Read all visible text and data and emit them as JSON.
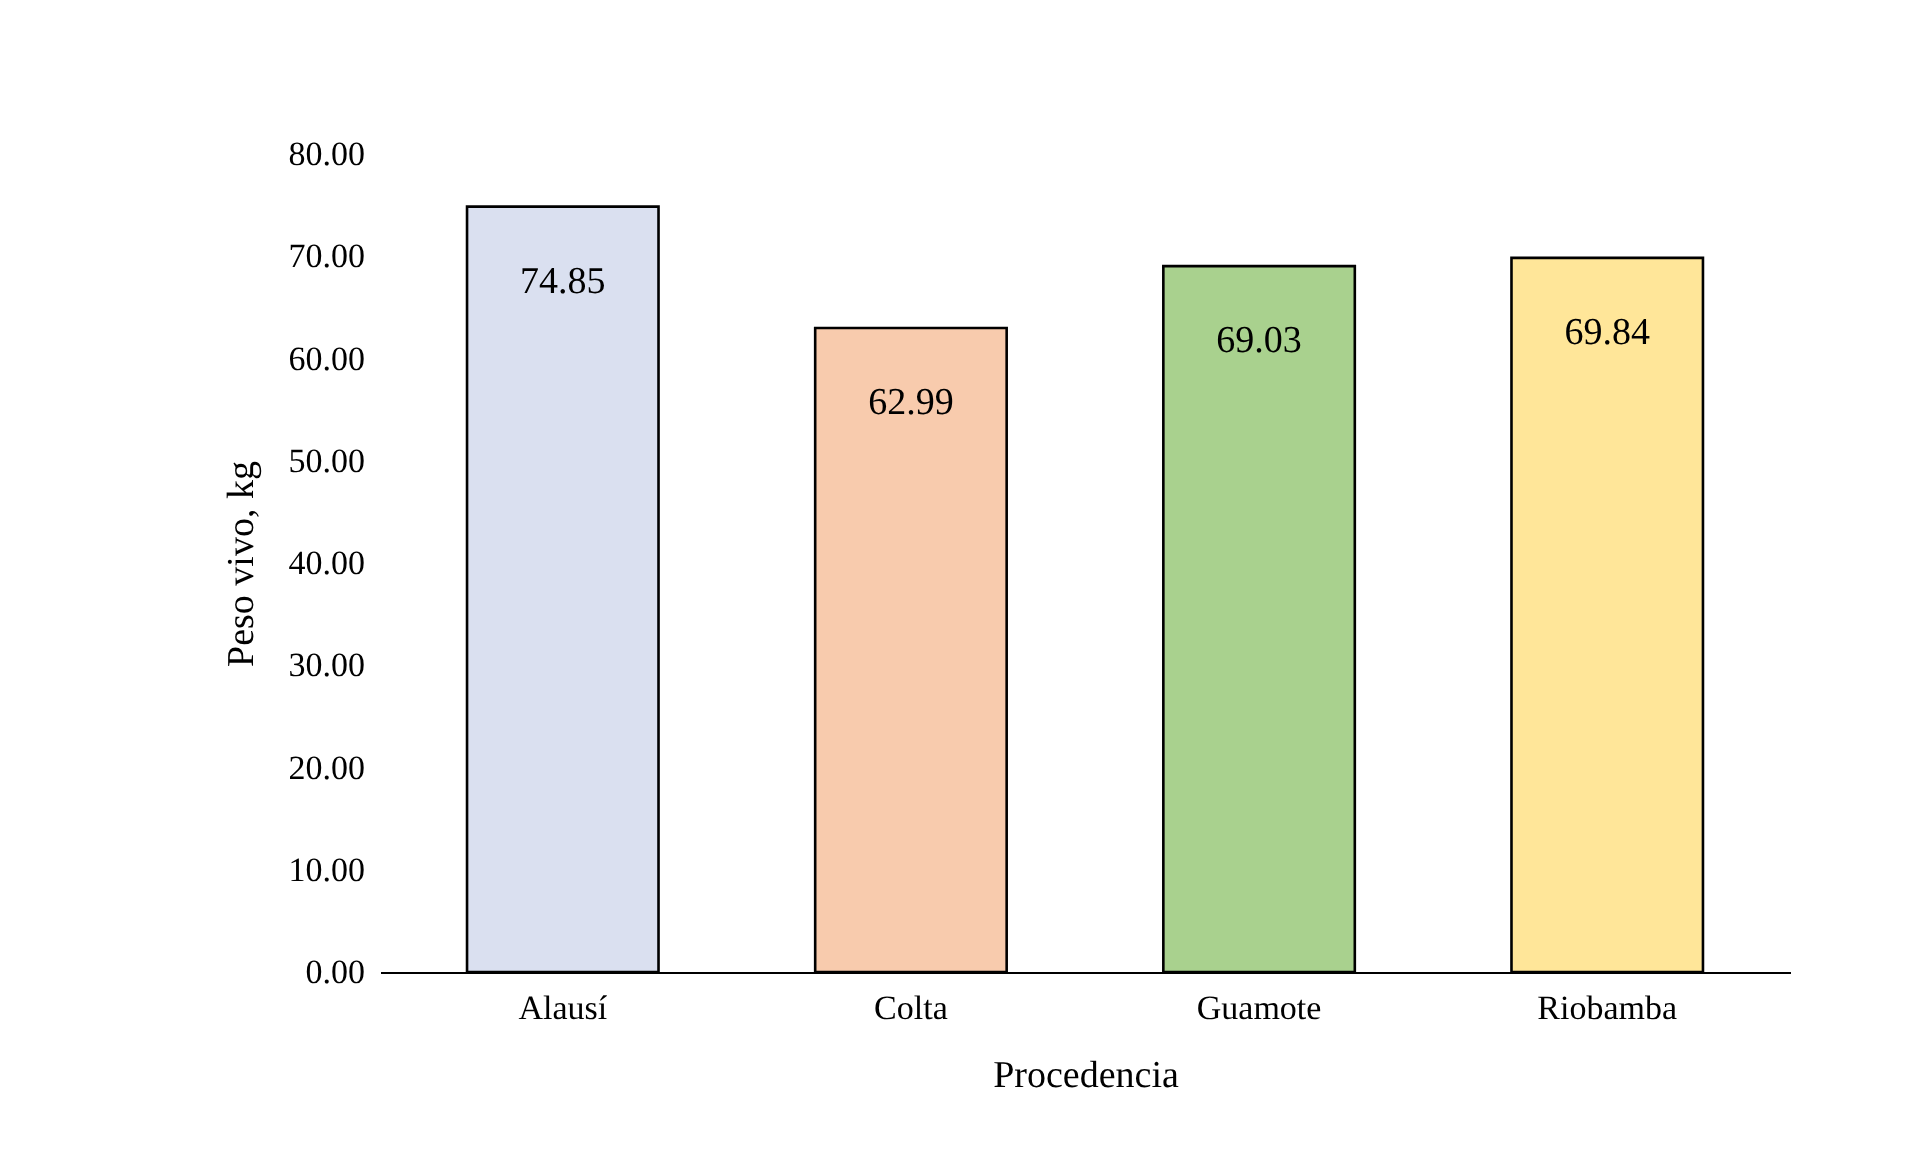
{
  "chart_data": {
    "type": "bar",
    "xlabel": "Procedencia",
    "ylabel": "Peso vivo, kg",
    "categories": [
      "Alausí",
      "Colta",
      "Guamote",
      "Riobamba"
    ],
    "values": [
      74.85,
      62.99,
      69.03,
      69.84
    ],
    "colors": [
      "#dae0f0",
      "#f8cbad",
      "#a9d18e",
      "#ffe699"
    ],
    "ylim": [
      0,
      80
    ],
    "yticks": [
      {
        "value": 0,
        "label": "0.00"
      },
      {
        "value": 10,
        "label": "10.00"
      },
      {
        "value": 20,
        "label": "20.00"
      },
      {
        "value": 30,
        "label": "30.00"
      },
      {
        "value": 40,
        "label": "40.00"
      },
      {
        "value": 50,
        "label": "50.00"
      },
      {
        "value": 60,
        "label": "60.00"
      },
      {
        "value": 70,
        "label": "70.00"
      },
      {
        "value": 80,
        "label": "80.00"
      }
    ],
    "data_labels": true,
    "grid": false
  }
}
